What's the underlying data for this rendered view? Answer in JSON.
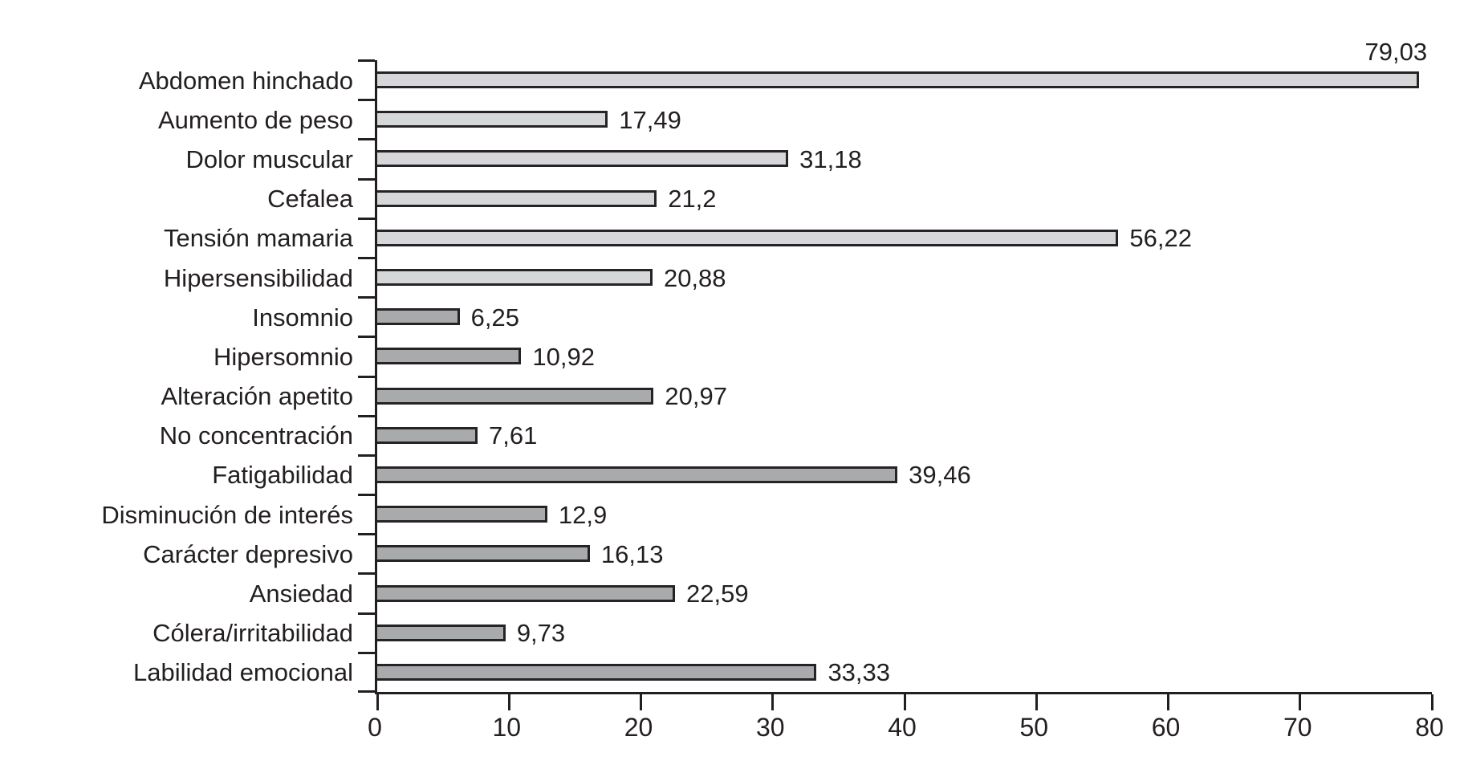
{
  "chart_data": {
    "type": "bar",
    "orientation": "horizontal",
    "title": "",
    "xlabel": "",
    "ylabel": "",
    "xlim": [
      0,
      80
    ],
    "x_ticks": [
      0,
      10,
      20,
      30,
      40,
      50,
      60,
      70,
      80
    ],
    "x_tick_labels": [
      "0",
      "10",
      "20",
      "30",
      "40",
      "50",
      "60",
      "70",
      "80"
    ],
    "grid": false,
    "legend": null,
    "categories": [
      "Abdomen hinchado",
      "Aumento de peso",
      "Dolor muscular",
      "Cefalea",
      "Tensión mamaria",
      "Hipersensibilidad",
      "Insomnio",
      "Hipersomnio",
      "Alteración apetito",
      "No concentración",
      "Fatigabilidad",
      "Disminución de interés",
      "Carácter depresivo",
      "Ansiedad",
      "Cólera/irritabilidad",
      "Labilidad emocional"
    ],
    "values": [
      79.03,
      17.49,
      31.18,
      21.2,
      56.22,
      20.88,
      6.25,
      10.92,
      20.97,
      7.61,
      39.46,
      12.9,
      16.13,
      22.59,
      9.73,
      33.33
    ],
    "value_labels": [
      "79,03",
      "17,49",
      "31,18",
      "21,2",
      "56,22",
      "20,88",
      "6,25",
      "10,92",
      "20,97",
      "7,61",
      "39,46",
      "12,9",
      "16,13",
      "22,59",
      "9,73",
      "33,33"
    ],
    "bar_shades": [
      "light",
      "light",
      "light",
      "light",
      "light",
      "light",
      "dark",
      "dark",
      "dark",
      "dark",
      "dark",
      "dark",
      "dark",
      "dark",
      "dark",
      "dark"
    ],
    "colors": {
      "light_bar": "#d5d7d8",
      "dark_bar": "#a8aaab",
      "bar_border": "#262326",
      "axis": "#231f20",
      "text": "#231f20"
    }
  }
}
